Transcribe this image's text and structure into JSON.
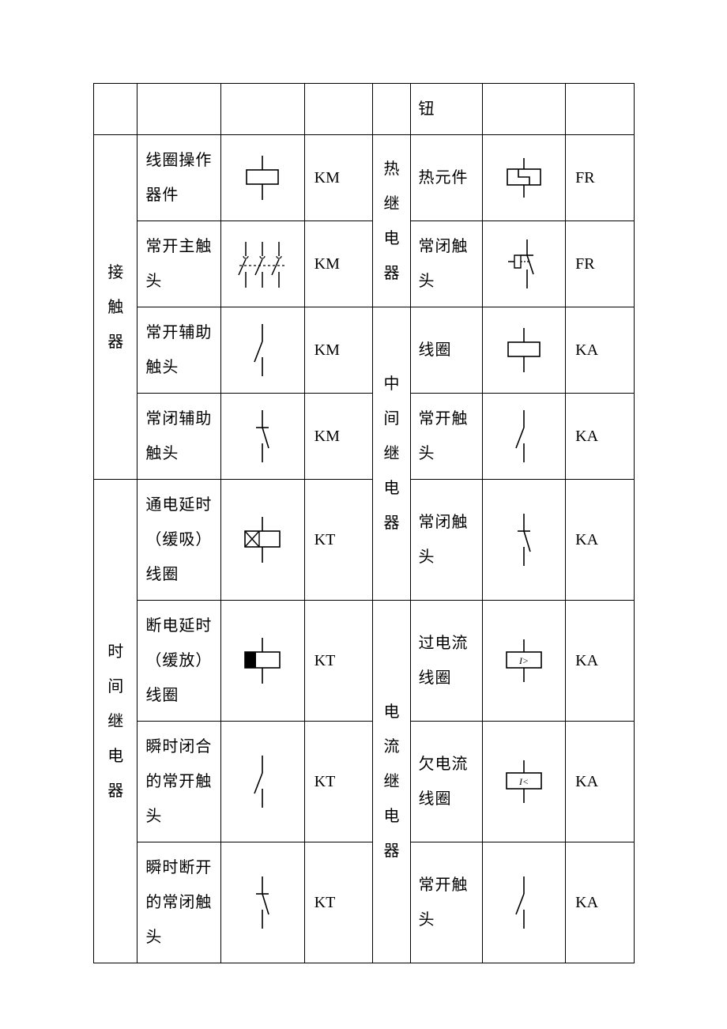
{
  "stroke": "#000000",
  "bg": "#ffffff",
  "font_cn": "SimSun",
  "font_code": "Times New Roman",
  "fontsize_text": 20,
  "left": [
    {
      "cat": "",
      "name": "",
      "code": "",
      "svg": "blank"
    },
    {
      "cat": "接触器",
      "cat_span": 4,
      "items": [
        {
          "name": "线圈操作器件",
          "code": "KM",
          "svg": "coil"
        },
        {
          "name": "常开主触头",
          "code": "KM",
          "svg": "main3no"
        },
        {
          "name": "常开辅助触头",
          "code": "KM",
          "svg": "aux_no"
        },
        {
          "name": "常闭辅助触头",
          "code": "KM",
          "svg": "aux_nc"
        }
      ]
    },
    {
      "cat": "时间继电器",
      "cat_span": 4,
      "items": [
        {
          "name": "通电延时（缓吸）线圈",
          "code": "KT",
          "svg": "coil_on_delay"
        },
        {
          "name": "断电延时（缓放）线圈",
          "code": "KT",
          "svg": "coil_off_delay"
        },
        {
          "name": "瞬时闭合的常开触头",
          "code": "KT",
          "svg": "aux_no"
        },
        {
          "name": "瞬时断开的常闭触头",
          "code": "KT",
          "svg": "aux_nc"
        }
      ]
    }
  ],
  "right": [
    {
      "cat": "",
      "cat_span": 1,
      "items": [
        {
          "name": "钮",
          "code": "",
          "svg": "blank"
        }
      ]
    },
    {
      "cat": "热继电器",
      "cat_span": 2,
      "items": [
        {
          "name": "热元件",
          "code": "FR",
          "svg": "fr_heater"
        },
        {
          "name": "常闭触头",
          "code": "FR",
          "svg": "fr_nc"
        }
      ]
    },
    {
      "cat": "中间继电器",
      "cat_span": 3,
      "items": [
        {
          "name": "线圈",
          "code": "KA",
          "svg": "coil"
        },
        {
          "name": "常开触头",
          "code": "KA",
          "svg": "aux_no"
        },
        {
          "name": "常闭触头",
          "code": "KA",
          "svg": "aux_nc"
        }
      ]
    },
    {
      "cat": "电流继电器",
      "cat_span": 3,
      "items": [
        {
          "name": "过电流线圈",
          "code": "KA",
          "svg": "coil_igt"
        },
        {
          "name": "欠电流线圈",
          "code": "KA",
          "svg": "coil_ilt"
        },
        {
          "name": "常开触头",
          "code": "KA",
          "svg": "aux_no"
        }
      ]
    }
  ]
}
